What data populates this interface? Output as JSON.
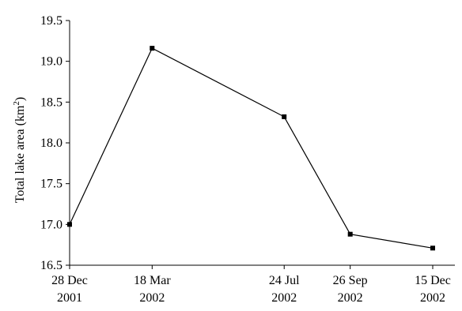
{
  "chart_data": {
    "type": "line",
    "title": "",
    "xlabel": "",
    "ylabel": "Total lake area (km",
    "ylabel_superscript": "2",
    "ylabel_close": ")",
    "categories": [
      [
        "28 Dec",
        "2001"
      ],
      [
        "18 Mar",
        "2002"
      ],
      [
        "24 Jul",
        "2002"
      ],
      [
        "26 Sep",
        "2002"
      ],
      [
        "15 Dec",
        "2002"
      ]
    ],
    "x": [
      "2001-12-28",
      "2002-03-18",
      "2002-07-24",
      "2002-09-26",
      "2002-12-15"
    ],
    "series": [
      {
        "values": [
          17.0,
          19.16,
          18.32,
          16.88,
          16.71
        ]
      }
    ],
    "ylim": [
      16.5,
      19.5
    ],
    "yticks": [
      "16.5",
      "17.0",
      "17.5",
      "18.0",
      "18.5",
      "19.0",
      "19.5"
    ],
    "marker": "square",
    "grid": false,
    "legend": "none"
  }
}
